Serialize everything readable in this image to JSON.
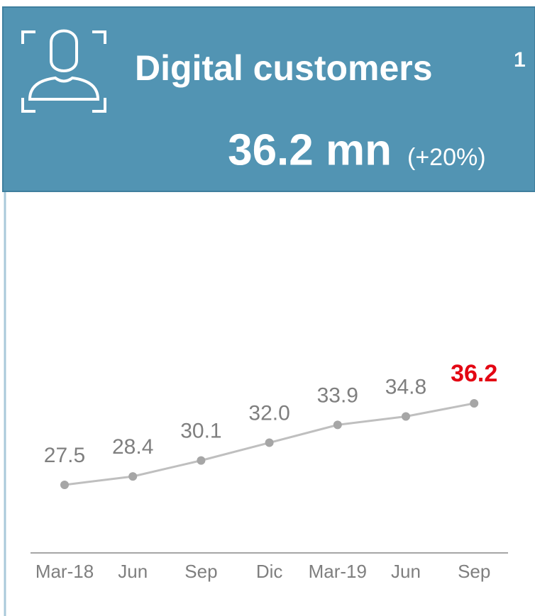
{
  "header": {
    "title": "Digital customers",
    "footnote": "1",
    "headline": "36.2 mn",
    "change": "(+20%)"
  },
  "chart_data": {
    "type": "line",
    "categories": [
      "Mar-18",
      "Jun",
      "Sep",
      "Dic",
      "Mar-19",
      "Jun",
      "Sep"
    ],
    "values": [
      27.5,
      28.4,
      30.1,
      32.0,
      33.9,
      34.8,
      36.2
    ],
    "value_labels": [
      "27.5",
      "28.4",
      "30.1",
      "32.0",
      "33.9",
      "34.8",
      "36.2"
    ],
    "color": "#bfbfbf",
    "marker_color": "#a6a6a6",
    "label_color": "#7f7f7f",
    "highlight": {
      "index": 6,
      "color": "#e30613"
    }
  }
}
